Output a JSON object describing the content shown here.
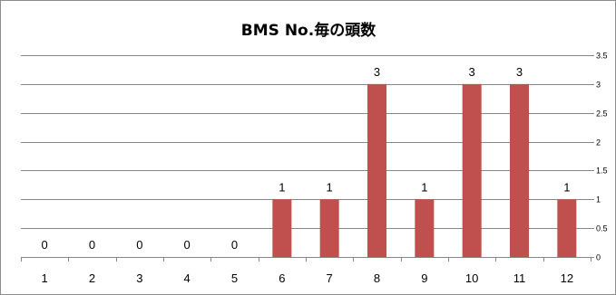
{
  "chart_data": {
    "type": "bar",
    "title": "BMS No.毎の頭数",
    "categories": [
      "1",
      "2",
      "3",
      "4",
      "5",
      "6",
      "7",
      "8",
      "9",
      "10",
      "11",
      "12"
    ],
    "values": [
      0,
      0,
      0,
      0,
      0,
      1,
      1,
      3,
      1,
      3,
      3,
      1
    ],
    "data_labels": [
      "0",
      "0",
      "0",
      "0",
      "0",
      "1",
      "1",
      "3",
      "1",
      "3",
      "3",
      "1"
    ],
    "ylim": [
      0,
      3.5
    ],
    "y_ticks": [
      0,
      0.5,
      1,
      1.5,
      2,
      2.5,
      3,
      3.5
    ],
    "y_tick_labels": [
      "0",
      "0.5",
      "1",
      "1.5",
      "2",
      "2.5",
      "3",
      "3.5"
    ],
    "y_axis_side": "right",
    "grid": true,
    "legend": "none",
    "bar_color": "#c0504d",
    "grid_color": "#868686"
  }
}
